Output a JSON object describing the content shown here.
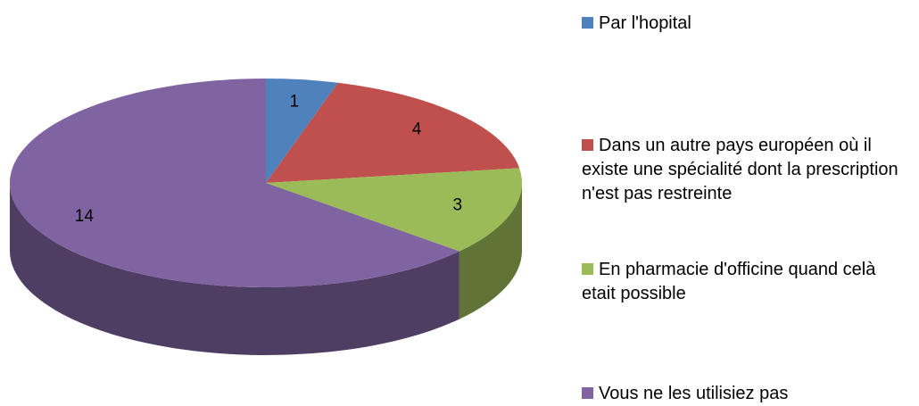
{
  "chart_data": {
    "type": "pie",
    "categories": [
      "Par l'hopital",
      "Dans un autre pays européen où il existe une spécialité dont la prescription n'est pas restreinte",
      "En pharmacie d'officine quand celà etait possible",
      "Vous ne les utilisiez pas"
    ],
    "values": [
      1,
      4,
      3,
      14
    ],
    "colors": [
      "#4f81bd",
      "#c0504d",
      "#9bbb59",
      "#8064a2"
    ],
    "legend": "right"
  }
}
